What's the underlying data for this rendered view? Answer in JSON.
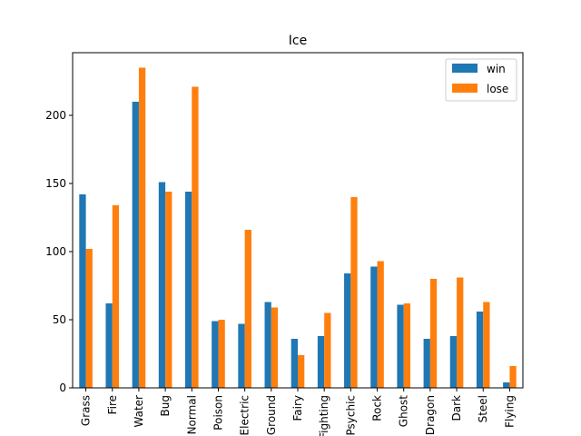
{
  "chart_data": {
    "type": "bar",
    "title": "Ice",
    "xlabel": "",
    "ylabel": "",
    "categories": [
      "Grass",
      "Fire",
      "Water",
      "Bug",
      "Normal",
      "Poison",
      "Electric",
      "Ground",
      "Fairy",
      "Fighting",
      "Psychic",
      "Rock",
      "Ghost",
      "Dragon",
      "Dark",
      "Steel",
      "Flying"
    ],
    "series": [
      {
        "name": "win",
        "color": "#1f77b4",
        "values": [
          142,
          62,
          210,
          151,
          144,
          49,
          47,
          63,
          36,
          38,
          84,
          89,
          61,
          36,
          38,
          56,
          4
        ]
      },
      {
        "name": "lose",
        "color": "#ff7f0e",
        "values": [
          102,
          134,
          235,
          144,
          221,
          50,
          116,
          59,
          24,
          55,
          140,
          93,
          62,
          80,
          81,
          63,
          16
        ]
      }
    ],
    "ylim": [
      0,
      246
    ],
    "yticks": [
      0,
      50,
      100,
      150,
      200
    ],
    "grid": false,
    "legend_position": "top-right"
  }
}
